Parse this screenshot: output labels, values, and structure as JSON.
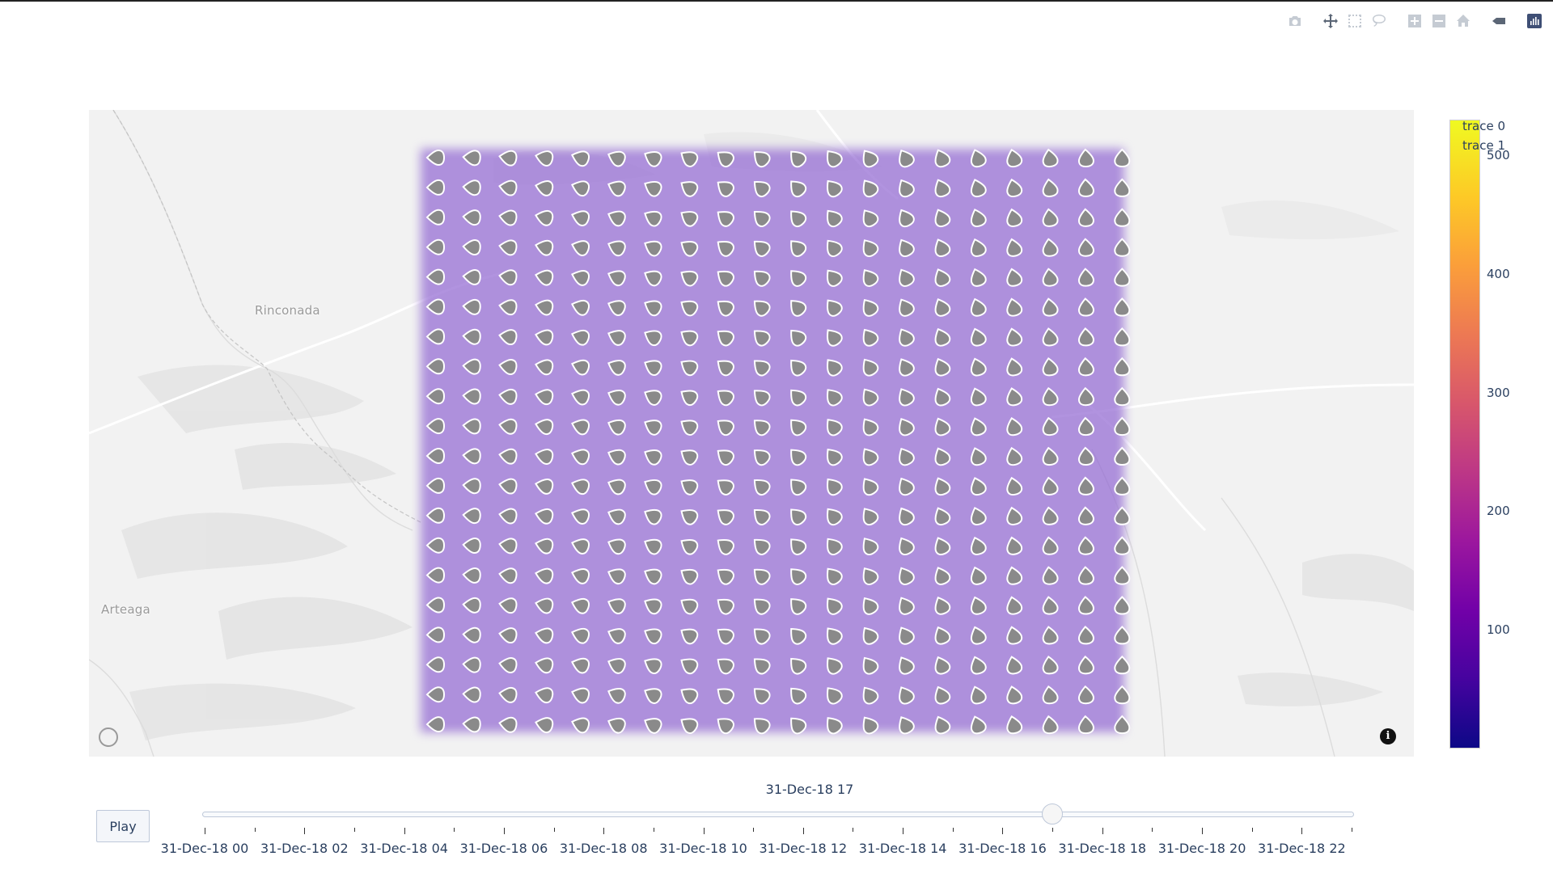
{
  "toolbar": {
    "buttons": [
      {
        "name": "camera-icon",
        "title": "Download plot as a png"
      },
      {
        "name": "pan-icon",
        "title": "Pan"
      },
      {
        "name": "box-select-icon",
        "title": "Box Select"
      },
      {
        "name": "lasso-select-icon",
        "title": "Lasso Select"
      },
      {
        "name": "zoom-in-icon",
        "title": "Zoom in"
      },
      {
        "name": "zoom-out-icon",
        "title": "Zoom out"
      },
      {
        "name": "home-icon",
        "title": "Reset view"
      },
      {
        "name": "toggle-spike-icon",
        "title": "Toggle show closest data on hover"
      },
      {
        "name": "plotly-logo-icon",
        "title": "Produced with Plotly"
      }
    ]
  },
  "map": {
    "places": [
      "Rinconada",
      "Arteaga"
    ],
    "overlay_color": "#9369d2",
    "marker_rows": 20,
    "marker_cols": 20,
    "info_label": "i"
  },
  "legend": {
    "items": [
      "trace 0",
      "trace 1"
    ]
  },
  "colorbar": {
    "colorscale": "plasma",
    "ticks": [
      "500",
      "400",
      "300",
      "200",
      "100"
    ],
    "range": [
      0,
      530
    ]
  },
  "slider": {
    "current_value": "31-Dec-18 17",
    "play_label": "Play",
    "labels": [
      "31-Dec-18 00",
      "31-Dec-18 02",
      "31-Dec-18 04",
      "31-Dec-18 06",
      "31-Dec-18 08",
      "31-Dec-18 10",
      "31-Dec-18 12",
      "31-Dec-18 14",
      "31-Dec-18 16",
      "31-Dec-18 18",
      "31-Dec-18 20",
      "31-Dec-18 22"
    ],
    "steps": 24,
    "active_step": 17
  }
}
